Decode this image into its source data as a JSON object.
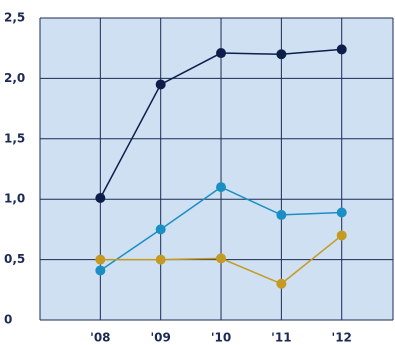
{
  "chart_data": {
    "type": "line",
    "categories": [
      "'08",
      "'09",
      "'10",
      "'11",
      "'12"
    ],
    "series": [
      {
        "color": "#0d1e4a",
        "values": [
          1.01,
          1.95,
          2.21,
          2.2,
          2.24
        ]
      },
      {
        "color": "#1a8fc4",
        "values": [
          0.41,
          0.75,
          1.1,
          0.87,
          0.89
        ]
      },
      {
        "color": "#c49a22",
        "values": [
          0.5,
          0.5,
          0.51,
          0.3,
          0.7
        ]
      }
    ],
    "ylim": [
      0,
      2.5
    ],
    "yticks": [
      0,
      {
        "value": 0.5,
        "label": "0,5"
      },
      {
        "value": 1,
        "label": "1,0"
      },
      {
        "value": 1.5,
        "label": "1,5"
      },
      {
        "value": 2,
        "label": "2,0"
      },
      {
        "value": 2.5,
        "label": "2,5"
      }
    ],
    "grid": true,
    "background": "#cfe0f2",
    "grid_color": "#1b2a55"
  }
}
